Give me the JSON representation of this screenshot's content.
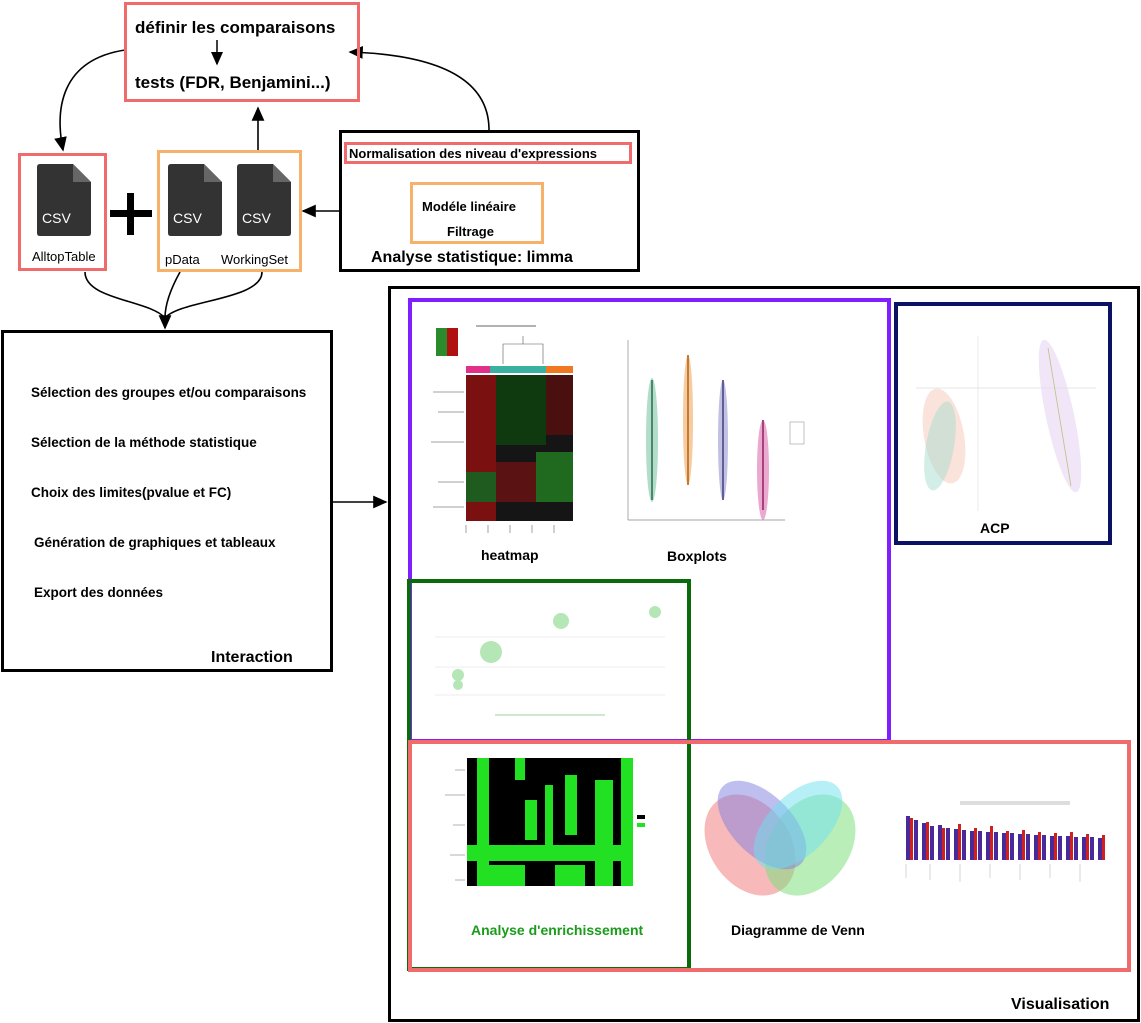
{
  "top": {
    "line1": "définir les comparaisons",
    "line2": "tests (FDR, Benjamini...)"
  },
  "files": {
    "icon_label": "CSV",
    "alltop": "AlltopTable",
    "pdata": "pData",
    "workingset": "WorkingSet"
  },
  "limma": {
    "normalisation": "Normalisation des niveau d'expressions",
    "modele": "Modéle linéaire",
    "filtrage": "Filtrage",
    "title": "Analyse statistique: limma"
  },
  "interaction": {
    "items": [
      "Sélection des groupes et/ou comparaisons",
      "Sélection de la méthode statistique",
      "Choix des limites(pvalue et FC)",
      "Génération de graphiques et tableaux",
      "Export des données"
    ],
    "title": "Interaction"
  },
  "visualisation": {
    "title": "Visualisation",
    "heatmap": "heatmap",
    "boxplots": "Boxplots",
    "acp": "ACP",
    "enrichissement": "Analyse d'enrichissement",
    "venn": "Diagramme de Venn"
  },
  "colors": {
    "red": "#f06b6b",
    "orange": "#f6b26b",
    "purple": "#7f1fff",
    "navy": "#0b1263",
    "green": "#0a6b0a",
    "green_text": "#1a9c1a",
    "icon_dark": "#333333"
  }
}
